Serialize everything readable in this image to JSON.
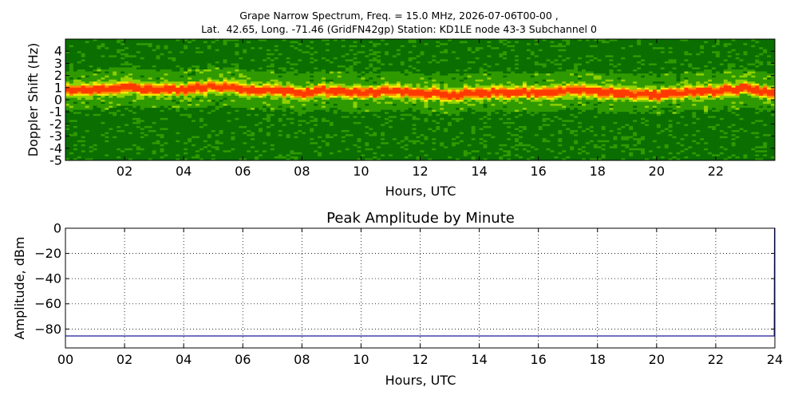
{
  "chart_data": [
    {
      "type": "heatmap",
      "title": [
        "Grape Narrow Spectrum, Freq. = 15.0 MHz, 2026-07-06T00-00 ,",
        "Lat.  42.65, Long. -71.46 (GridFN42gp) Station: KD1LE node 43-3 Subchannel 0"
      ],
      "xlabel": "Hours, UTC",
      "ylabel": "Doppler Shift (Hz)",
      "xlim": [
        0,
        24
      ],
      "ylim": [
        -5,
        5
      ],
      "xticks": [
        {
          "v": 2,
          "label": "02"
        },
        {
          "v": 4,
          "label": "04"
        },
        {
          "v": 6,
          "label": "06"
        },
        {
          "v": 8,
          "label": "08"
        },
        {
          "v": 10,
          "label": "10"
        },
        {
          "v": 12,
          "label": "12"
        },
        {
          "v": 14,
          "label": "14"
        },
        {
          "v": 16,
          "label": "16"
        },
        {
          "v": 18,
          "label": "18"
        },
        {
          "v": 20,
          "label": "20"
        },
        {
          "v": 22,
          "label": "22"
        }
      ],
      "yticks": [
        {
          "v": 4,
          "label": "4"
        },
        {
          "v": 3,
          "label": "3"
        },
        {
          "v": 2,
          "label": "2"
        },
        {
          "v": 1,
          "label": "1"
        },
        {
          "v": 0,
          "label": "0"
        },
        {
          "v": -1,
          "label": "-1"
        },
        {
          "v": -2,
          "label": "-2"
        },
        {
          "v": -3,
          "label": "-3"
        },
        {
          "v": -4,
          "label": "-4"
        },
        {
          "v": -5,
          "label": "-5"
        }
      ],
      "colormap": [
        "#0a6e00",
        "#2f9a00",
        "#8ed000",
        "#f5e600",
        "#ff8a00",
        "#ff3a00"
      ],
      "peak_trace_hz": {
        "hours": [
          0,
          1,
          2,
          3,
          4,
          5,
          6,
          7,
          8,
          9,
          10,
          11,
          12,
          13,
          14,
          15,
          16,
          17,
          18,
          19,
          20,
          21,
          22,
          23,
          24
        ],
        "doppler": [
          0.8,
          0.85,
          1.0,
          0.9,
          0.8,
          1.1,
          0.9,
          0.75,
          0.6,
          0.75,
          0.55,
          0.7,
          0.5,
          0.45,
          0.55,
          0.6,
          0.6,
          0.8,
          0.75,
          0.45,
          0.4,
          0.6,
          0.75,
          0.95,
          0.5
        ]
      }
    },
    {
      "type": "line",
      "title": "Peak Amplitude by Minute",
      "xlabel": "Hours, UTC",
      "ylabel": "Amplitude, dBm",
      "xlim": [
        0,
        24
      ],
      "ylim": [
        -95,
        0
      ],
      "grid": true,
      "xticks": [
        {
          "v": 0,
          "label": "00"
        },
        {
          "v": 2,
          "label": "02"
        },
        {
          "v": 4,
          "label": "04"
        },
        {
          "v": 6,
          "label": "06"
        },
        {
          "v": 8,
          "label": "08"
        },
        {
          "v": 10,
          "label": "10"
        },
        {
          "v": 12,
          "label": "12"
        },
        {
          "v": 14,
          "label": "14"
        },
        {
          "v": 16,
          "label": "16"
        },
        {
          "v": 18,
          "label": "18"
        },
        {
          "v": 20,
          "label": "20"
        },
        {
          "v": 22,
          "label": "22"
        },
        {
          "v": 24,
          "label": "24"
        }
      ],
      "yticks": [
        {
          "v": 0,
          "label": "0"
        },
        {
          "v": -20,
          "label": "−20"
        },
        {
          "v": -40,
          "label": "−40"
        },
        {
          "v": -60,
          "label": "−60"
        },
        {
          "v": -80,
          "label": "−80"
        }
      ],
      "series": [
        {
          "color": "#1a1a9c",
          "x": [
            0,
            2,
            4,
            6,
            8,
            10,
            12,
            14,
            16,
            18,
            20,
            22,
            23.98,
            23.99,
            24
          ],
          "y": [
            -85.5,
            -85.5,
            -85.5,
            -85.5,
            -85.5,
            -85.5,
            -85.5,
            -85.5,
            -85.5,
            -85.5,
            -85.5,
            -85.5,
            -85.5,
            0,
            0
          ]
        }
      ]
    }
  ]
}
